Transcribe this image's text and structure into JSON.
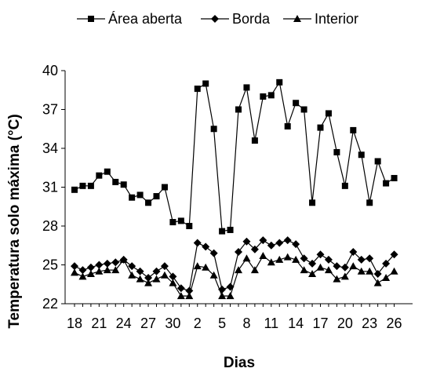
{
  "chart_data": {
    "type": "line",
    "xlabel": "Dias",
    "ylabel": "Temperatura solo máxima (°C)",
    "ylim": [
      22,
      40
    ],
    "yticks": [
      22,
      25,
      28,
      31,
      34,
      37,
      40
    ],
    "x": [
      18,
      19,
      20,
      21,
      22,
      23,
      24,
      25,
      26,
      27,
      28,
      29,
      30,
      31,
      1,
      2,
      3,
      4,
      5,
      6,
      7,
      8,
      9,
      10,
      11,
      12,
      13,
      14,
      15,
      16,
      17,
      18,
      19,
      20,
      21,
      22,
      23,
      24,
      25,
      26
    ],
    "xtick_labels": [
      "18",
      "21",
      "24",
      "27",
      "30",
      "2",
      "5",
      "8",
      "11",
      "14",
      "17",
      "20",
      "23",
      "26"
    ],
    "legend_position": "top",
    "grid": false,
    "series": [
      {
        "name": "Área aberta",
        "marker": "square",
        "values": [
          30.8,
          31.1,
          31.1,
          31.9,
          32.2,
          31.4,
          31.2,
          30.2,
          30.4,
          29.8,
          30.3,
          31.0,
          28.3,
          28.4,
          28.0,
          38.6,
          39.0,
          35.5,
          27.6,
          27.7,
          37.0,
          38.7,
          34.6,
          38.0,
          38.1,
          39.1,
          35.7,
          37.5,
          37.0,
          29.8,
          35.6,
          36.7,
          33.7,
          31.1,
          35.4,
          33.5,
          29.8,
          33.0,
          31.3,
          31.7
        ]
      },
      {
        "name": "Borda",
        "marker": "diamond",
        "values": [
          24.9,
          24.6,
          24.8,
          25.0,
          25.1,
          25.2,
          25.4,
          24.9,
          24.5,
          24.0,
          24.5,
          24.9,
          24.1,
          23.2,
          23.0,
          26.7,
          26.4,
          25.9,
          23.1,
          23.3,
          26.0,
          26.8,
          26.2,
          26.9,
          26.5,
          26.7,
          26.9,
          26.6,
          25.5,
          25.1,
          25.8,
          25.4,
          24.9,
          24.8,
          26.0,
          25.4,
          25.5,
          24.3,
          25.1,
          25.8
        ]
      },
      {
        "name": "Interior",
        "marker": "triangle",
        "values": [
          24.4,
          24.1,
          24.3,
          24.5,
          24.6,
          24.6,
          25.4,
          24.2,
          23.9,
          23.6,
          23.9,
          24.2,
          23.6,
          22.6,
          22.6,
          24.9,
          24.8,
          24.2,
          22.6,
          22.6,
          24.6,
          25.5,
          24.6,
          25.7,
          25.2,
          25.4,
          25.6,
          25.4,
          24.6,
          24.3,
          24.8,
          24.6,
          23.9,
          24.1,
          24.9,
          24.5,
          24.5,
          23.6,
          24.0,
          24.5
        ]
      }
    ]
  }
}
